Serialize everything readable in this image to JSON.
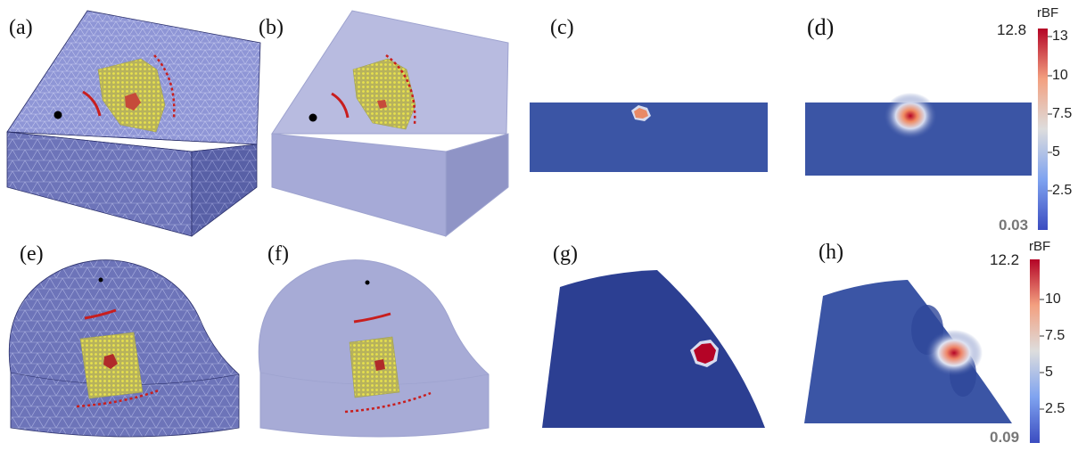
{
  "panels": {
    "a": {
      "label": "(a)"
    },
    "b": {
      "label": "(b)"
    },
    "c": {
      "label": "(c)"
    },
    "d": {
      "label": "(d)"
    },
    "e": {
      "label": "(e)"
    },
    "f": {
      "label": "(f)"
    },
    "g": {
      "label": "(g)"
    },
    "h": {
      "label": "(h)"
    }
  },
  "colorbar_top": {
    "title": "rBF",
    "max": "12.8",
    "min": "0.03",
    "ticks": [
      "13",
      "10",
      "7.5",
      "5",
      "2.5"
    ]
  },
  "colorbar_bottom": {
    "title": "rBF",
    "max": "12.2",
    "min": "0.09",
    "ticks": [
      "10",
      "7.5",
      "5",
      "2.5"
    ]
  },
  "colors": {
    "mesh_face": "#6a72b8",
    "transparent_face": "#a7abd6",
    "detector_grid": "#d9d24a",
    "source_red": "#c81e1e",
    "map_blue": "#3b55a5",
    "map_deep_blue": "#2c3f92",
    "hot_red": "#b40426"
  }
}
